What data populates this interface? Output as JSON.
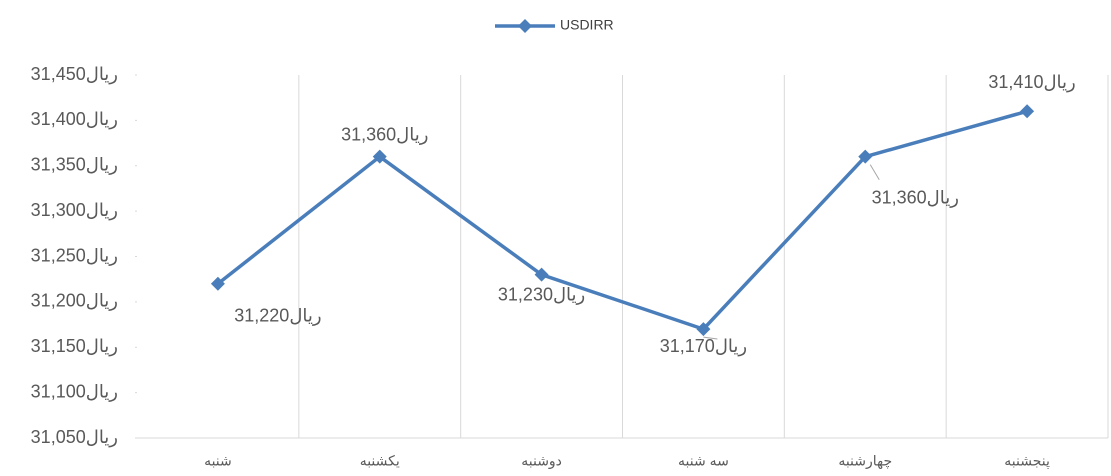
{
  "chart_data": {
    "type": "line",
    "categories": [
      "شنبه",
      "یکشنبه",
      "دوشنبه",
      "سه شنبه",
      "چهارشنبه",
      "پنجشنبه"
    ],
    "series": [
      {
        "name": "USDIRR",
        "color": "#4a7ebb",
        "values": [
          31220,
          31360,
          31230,
          31170,
          31360,
          31410
        ],
        "value_labels": [
          "31,220ریال",
          "31,360ریال",
          "31,230ریال",
          "31,170ریال",
          "31,360ریال",
          "31,410ریال"
        ]
      }
    ],
    "ylim": [
      31050,
      31450
    ],
    "yticks": [
      {
        "value": 31050,
        "label": "31,050ریال"
      },
      {
        "value": 31100,
        "label": "31,100ریال"
      },
      {
        "value": 31150,
        "label": "31,150ریال"
      },
      {
        "value": 31200,
        "label": "31,200ریال"
      },
      {
        "value": 31250,
        "label": "31,250ریال"
      },
      {
        "value": 31300,
        "label": "31,300ریال"
      },
      {
        "value": 31350,
        "label": "31,350ریال"
      },
      {
        "value": 31400,
        "label": "31,400ریال"
      },
      {
        "value": 31450,
        "label": "31,450ریال"
      }
    ],
    "legend": "top",
    "grid": "vertical"
  }
}
